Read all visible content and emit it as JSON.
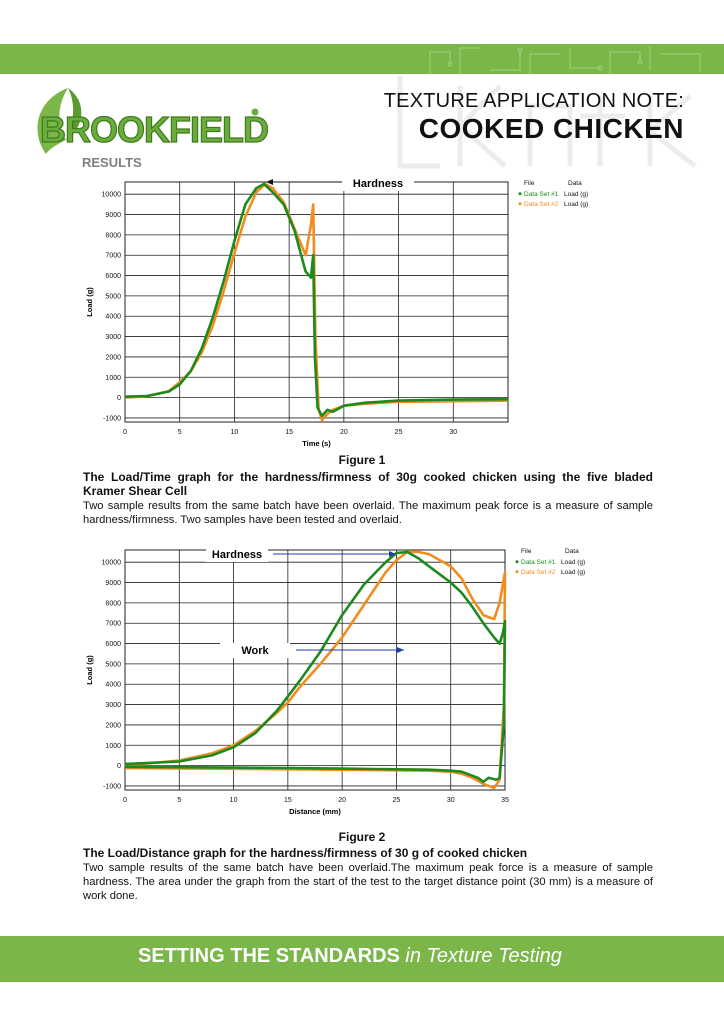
{
  "header": {
    "brand": "BROOKFIELD",
    "section": "RESULTS",
    "note_title": "TEXTURE APPLICATION NOTE:",
    "note_subject": "COOKED CHICKEN"
  },
  "figure1": {
    "label": "Figure 1",
    "caption_bold": "The Load/Time graph for the hardness/firmness of 30g cooked chicken using the five bladed Kramer Shear Cell",
    "caption": "Two sample results from the same batch have been overlaid. The maximum peak force is a measure of sample hardness/firmness. Two samples have been tested and overlaid."
  },
  "figure2": {
    "label": "Figure 2",
    "caption_bold": "The Load/Distance graph for the hardness/firmness of 30 g of cooked chicken",
    "caption": "Two sample results of the same batch have been overlaid.The maximum peak force is a measure of sample hardness. The area under the graph from the start of the test to the target distance point (30 mm) is a measure of work done."
  },
  "footer": {
    "strong": "SETTING THE STANDARDS",
    "rest": "in Texture Testing"
  },
  "colors": {
    "green_bar": "#7ab648",
    "series1": "#1e8a1e",
    "series2": "#f28c1e",
    "arrow": "#1f3fa8"
  },
  "chart_data": [
    {
      "type": "line",
      "xlabel": "Time (s)",
      "ylabel": "Load (g)",
      "xlim": [
        0,
        35
      ],
      "ylim": [
        -1200,
        10600
      ],
      "xticks": [
        0,
        5,
        10,
        15,
        20,
        25,
        30
      ],
      "yticks": [
        -1000,
        0,
        1000,
        2000,
        3000,
        4000,
        5000,
        6000,
        7000,
        8000,
        9000,
        10000
      ],
      "grid": true,
      "legend_header": [
        "File",
        "Data"
      ],
      "legend": [
        {
          "name": "Data Set #1",
          "data": "Load (g)"
        },
        {
          "name": "Data Set #2",
          "data": "Load (g)"
        }
      ],
      "annotations": [
        {
          "text": "Hardness"
        }
      ],
      "series": [
        {
          "name": "Data Set #1",
          "x": [
            0,
            2,
            4,
            5,
            6,
            7,
            8,
            9,
            10,
            11,
            12,
            12.7,
            13.5,
            14.5,
            15.5,
            16.5,
            17.0,
            17.2,
            17.35,
            17.6,
            18,
            18.5,
            19,
            20,
            22,
            25,
            30,
            35
          ],
          "y": [
            50,
            80,
            300,
            650,
            1300,
            2400,
            3900,
            5700,
            7700,
            9500,
            10300,
            10500,
            10100,
            9500,
            8200,
            6200,
            5900,
            7000,
            2000,
            -500,
            -900,
            -600,
            -700,
            -400,
            -250,
            -150,
            -100,
            -80
          ]
        },
        {
          "name": "Data Set #2",
          "x": [
            0,
            2,
            4,
            5,
            6,
            7,
            8,
            9,
            10,
            11,
            12,
            12.8,
            13.5,
            14.5,
            15.5,
            16.5,
            17.0,
            17.2,
            17.4,
            17.7,
            18,
            18.5,
            19,
            20,
            22,
            25,
            30,
            35
          ],
          "y": [
            0,
            60,
            320,
            750,
            1300,
            2200,
            3500,
            5200,
            7100,
            8900,
            10100,
            10500,
            10300,
            9600,
            8300,
            7000,
            8500,
            9500,
            3000,
            -600,
            -1100,
            -800,
            -600,
            -400,
            -300,
            -200,
            -180,
            -150
          ]
        }
      ]
    },
    {
      "type": "line",
      "xlabel": "Distance (mm)",
      "ylabel": "Load (g)",
      "xlim": [
        0,
        35
      ],
      "ylim": [
        -1200,
        10600
      ],
      "xticks": [
        0,
        5,
        10,
        15,
        20,
        25,
        30,
        35
      ],
      "yticks": [
        -1000,
        0,
        1000,
        2000,
        3000,
        4000,
        5000,
        6000,
        7000,
        8000,
        9000,
        10000
      ],
      "grid": true,
      "legend_header": [
        "File",
        "Data"
      ],
      "legend": [
        {
          "name": "Data Set #1",
          "data": "Load (g)"
        },
        {
          "name": "Data Set #2",
          "data": "Load (g)"
        }
      ],
      "annotations": [
        {
          "text": "Hardness"
        },
        {
          "text": "Work"
        }
      ],
      "series": [
        {
          "name": "Data Set #1",
          "x": [
            0,
            5,
            8,
            10,
            12,
            14,
            15,
            16,
            18,
            20,
            22,
            24,
            25,
            26,
            27,
            28,
            29,
            30,
            31,
            32,
            33,
            34,
            34.5,
            34.8,
            35,
            34.9,
            34.5,
            34.2,
            33.5,
            33,
            32.5,
            31,
            30,
            28,
            25,
            20,
            15,
            10,
            5,
            0
          ],
          "y": [
            80,
            200,
            500,
            900,
            1600,
            2700,
            3400,
            4100,
            5600,
            7400,
            8900,
            10000,
            10450,
            10500,
            10200,
            9800,
            9400,
            9000,
            8500,
            7800,
            7000,
            6300,
            6000,
            6500,
            7100,
            2000,
            -600,
            -700,
            -600,
            -800,
            -600,
            -300,
            -250,
            -200,
            -180,
            -150,
            -120,
            -100,
            -80,
            -60
          ]
        },
        {
          "name": "Data Set #2",
          "x": [
            0,
            5,
            8,
            10,
            12,
            14,
            15,
            16,
            18,
            20,
            22,
            24,
            25,
            26,
            27,
            28,
            29,
            30,
            31,
            32,
            33,
            34,
            34.5,
            35,
            34.9,
            34.5,
            34,
            33.5,
            33,
            32,
            31,
            30,
            28,
            25,
            20,
            15,
            10,
            5,
            0
          ],
          "y": [
            0,
            250,
            600,
            1000,
            1700,
            2600,
            3100,
            3800,
            5000,
            6300,
            7900,
            9500,
            10100,
            10500,
            10500,
            10400,
            10100,
            9800,
            9200,
            8200,
            7400,
            7200,
            8000,
            9500,
            3000,
            -700,
            -1100,
            -1000,
            -900,
            -600,
            -400,
            -300,
            -250,
            -230,
            -200,
            -180,
            -160,
            -140,
            -120
          ]
        }
      ]
    }
  ]
}
